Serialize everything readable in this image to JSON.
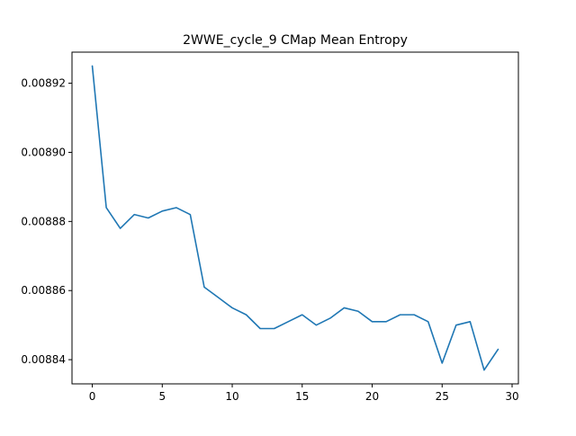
{
  "chart_data": {
    "type": "line",
    "title": "2WWE_cycle_9 CMap Mean Entropy",
    "xlabel": "",
    "ylabel": "",
    "xlim": [
      -1.45,
      30.45
    ],
    "ylim": [
      0.008833,
      0.008929
    ],
    "x_ticks": [
      0,
      5,
      10,
      15,
      20,
      25,
      30
    ],
    "x_tick_labels": [
      "0",
      "5",
      "10",
      "15",
      "20",
      "25",
      "30"
    ],
    "y_ticks": [
      0.00884,
      0.00886,
      0.00888,
      0.0089,
      0.00892
    ],
    "y_tick_labels": [
      "0.00884",
      "0.00886",
      "0.00888",
      "0.00890",
      "0.00892"
    ],
    "grid": false,
    "legend": "none",
    "series": [
      {
        "color": "#1f77b4",
        "x": [
          0,
          1,
          2,
          3,
          4,
          5,
          6,
          7,
          8,
          9,
          10,
          11,
          12,
          13,
          14,
          15,
          16,
          17,
          18,
          19,
          20,
          21,
          22,
          23,
          24,
          25,
          26,
          27,
          28,
          29
        ],
        "y": [
          0.008925,
          0.008884,
          0.008878,
          0.008882,
          0.008881,
          0.008883,
          0.008884,
          0.008882,
          0.008861,
          0.008858,
          0.008855,
          0.008853,
          0.008849,
          0.008849,
          0.008851,
          0.008853,
          0.00885,
          0.008852,
          0.008855,
          0.008854,
          0.008851,
          0.008851,
          0.008853,
          0.008853,
          0.008851,
          0.008839,
          0.00885,
          0.008851,
          0.008837,
          0.008843
        ]
      }
    ]
  }
}
